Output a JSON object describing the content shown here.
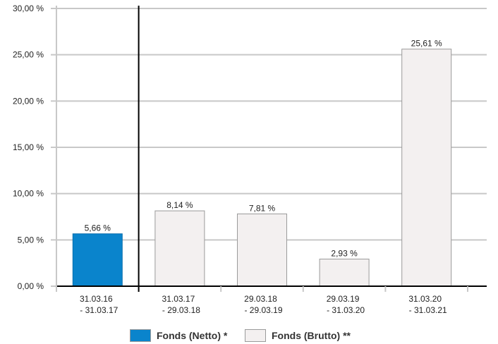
{
  "chart_data": {
    "type": "bar",
    "categories": [
      [
        "31.03.16",
        "- 31.03.17"
      ],
      [
        "31.03.17",
        "- 29.03.18"
      ],
      [
        "29.03.18",
        "- 29.03.19"
      ],
      [
        "29.03.19",
        "- 31.03.20"
      ],
      [
        "31.03.20",
        "- 31.03.21"
      ]
    ],
    "values": [
      5.66,
      8.14,
      7.81,
      2.93,
      25.61
    ],
    "value_labels": [
      "5,66 %",
      "8,14 %",
      "7,81 %",
      "2,93 %",
      "25,61 %"
    ],
    "series_of_bar": [
      "Fonds (Netto) *",
      "Fonds (Brutto) **",
      "Fonds (Brutto) **",
      "Fonds (Brutto) **",
      "Fonds (Brutto) **"
    ],
    "series": [
      {
        "name": "Fonds (Netto) *",
        "color": "#0a84cc",
        "bars": [
          0
        ]
      },
      {
        "name": "Fonds (Brutto) **",
        "color": "#f3f0f0",
        "bars": [
          1,
          2,
          3,
          4
        ]
      }
    ],
    "yticks": [
      0,
      5,
      10,
      15,
      20,
      25,
      30
    ],
    "ytick_labels": [
      "0,00 %",
      "5,00 %",
      "10,00 %",
      "15,00 %",
      "20,00 %",
      "25,00 %",
      "30,00 %"
    ],
    "ylim": [
      0,
      30
    ],
    "grid": true,
    "legend_position": "bottom",
    "title": "",
    "xlabel": "",
    "ylabel": "",
    "colors": {
      "grid": "#c8c8c8",
      "axis": "#000000",
      "text": "#222222",
      "border": "#9a9a9a"
    }
  },
  "legend": {
    "netto_label": "Fonds (Netto) *",
    "brutto_label": "Fonds (Brutto) **",
    "netto_color": "#0a84cc",
    "brutto_color": "#f3f0f0"
  }
}
